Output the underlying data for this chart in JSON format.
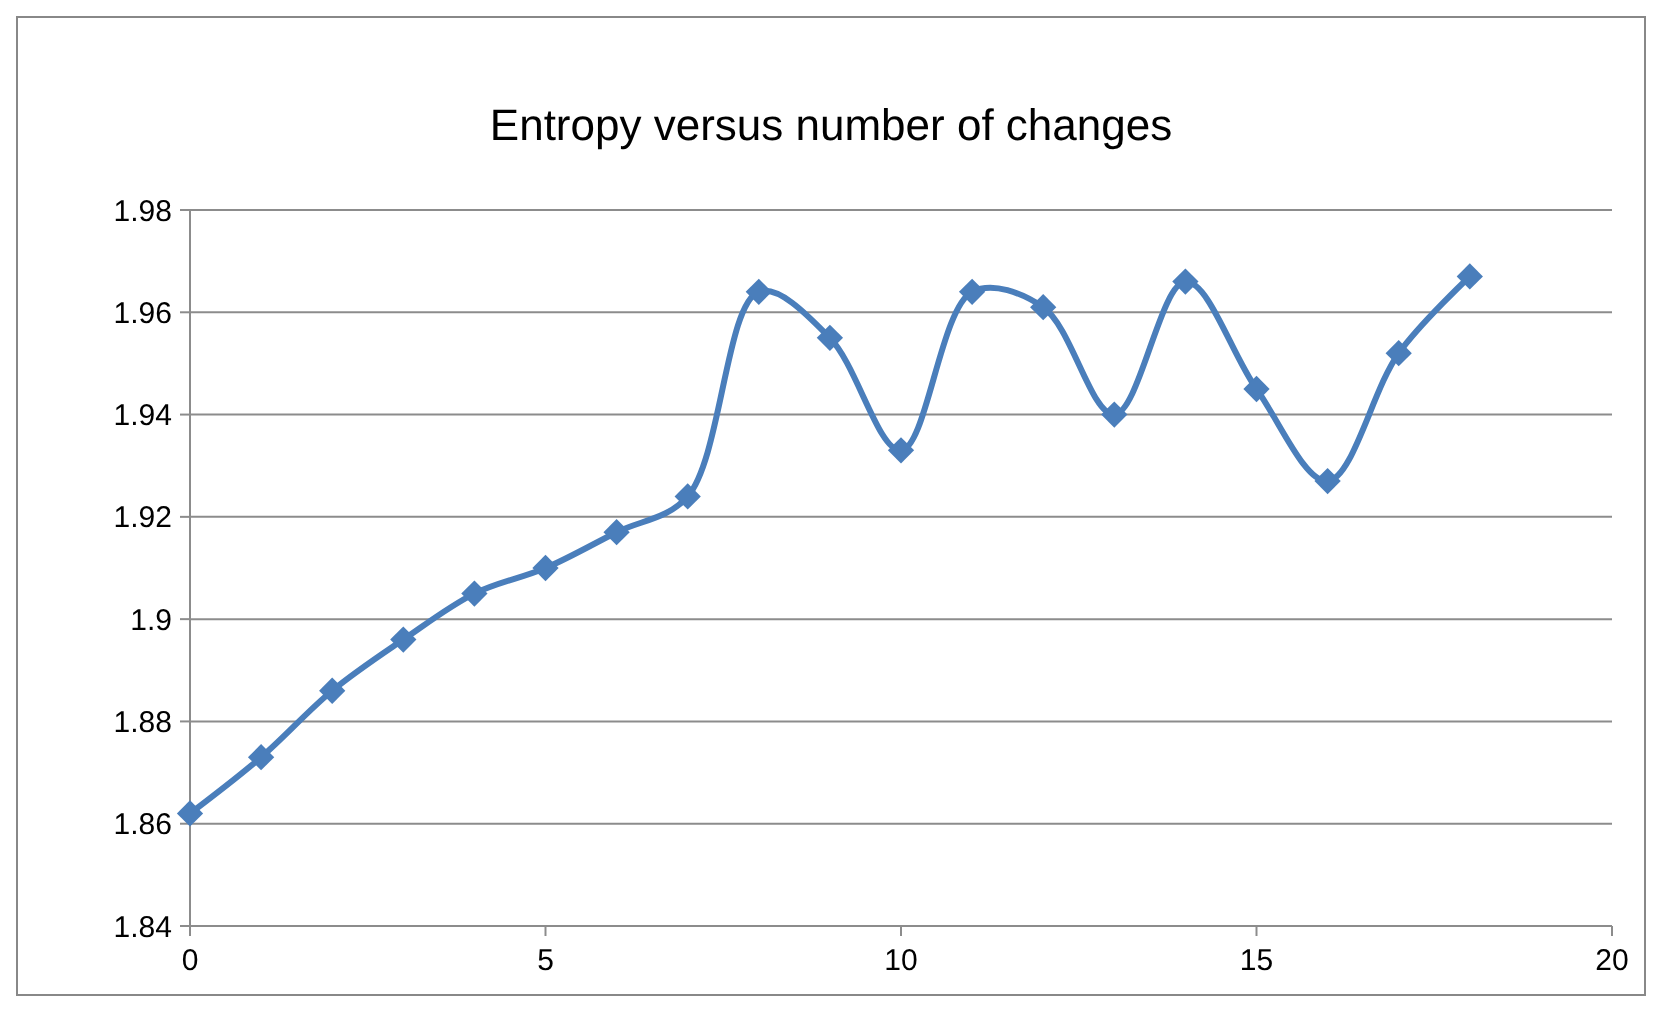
{
  "chart_data": {
    "type": "line",
    "title": "Entropy versus number of changes",
    "x": [
      0,
      1,
      2,
      3,
      4,
      5,
      6,
      7,
      8,
      9,
      10,
      11,
      12,
      13,
      14,
      15,
      16,
      17,
      18
    ],
    "series": [
      {
        "color": "#4a7ebb",
        "values": [
          1.862,
          1.873,
          1.886,
          1.896,
          1.905,
          1.91,
          1.917,
          1.924,
          1.964,
          1.955,
          1.933,
          1.964,
          1.961,
          1.94,
          1.966,
          1.945,
          1.927,
          1.952,
          1.967
        ]
      }
    ],
    "xlim": [
      0,
      20
    ],
    "xticks": [
      0,
      5,
      10,
      15,
      20
    ],
    "ylim": [
      1.84,
      1.98
    ],
    "yticks": [
      {
        "value": 1.84,
        "label": "1.84"
      },
      {
        "value": 1.86,
        "label": "1.86"
      },
      {
        "value": 1.88,
        "label": "1.88"
      },
      {
        "value": 1.9,
        "label": "1.9"
      },
      {
        "value": 1.92,
        "label": "1.92"
      },
      {
        "value": 1.94,
        "label": "1.94"
      },
      {
        "value": 1.96,
        "label": "1.96"
      },
      {
        "value": 1.98,
        "label": "1.98"
      }
    ],
    "grid": "y",
    "marker": "diamond",
    "line_style": "solid"
  }
}
